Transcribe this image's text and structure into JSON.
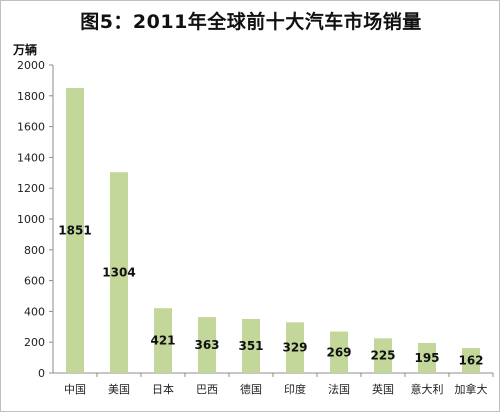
{
  "chart_data": {
    "type": "bar",
    "title": "图5：2011年全球前十大汽车市场销量",
    "ylabel": "万辆",
    "xlabel": "",
    "categories": [
      "中国",
      "美国",
      "日本",
      "巴西",
      "德国",
      "印度",
      "法国",
      "英国",
      "意大利",
      "加拿大"
    ],
    "values": [
      1851,
      1304,
      421,
      363,
      351,
      329,
      269,
      225,
      195,
      162
    ],
    "ylim": [
      0,
      2000
    ],
    "yticks": [
      0,
      200,
      400,
      600,
      800,
      1000,
      1200,
      1400,
      1600,
      1800,
      2000
    ],
    "grid": false,
    "legend": "none",
    "bar_color": "#c4d79b"
  }
}
